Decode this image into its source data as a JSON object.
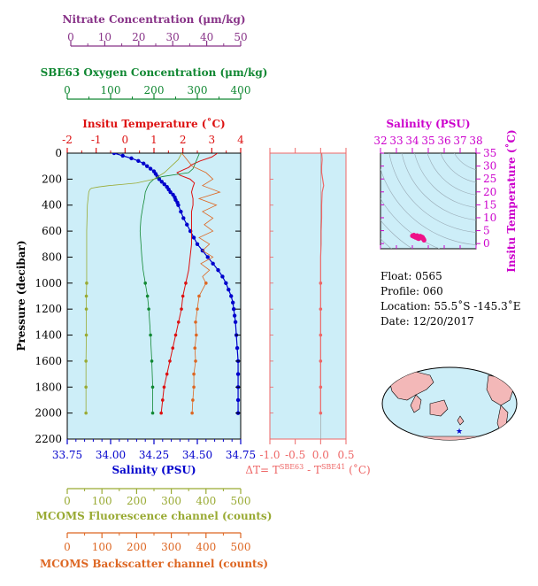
{
  "colors": {
    "panel_bg": "#cdeef8",
    "nitrate": "#883388",
    "oxygen": "#118833",
    "temperature": "#dd1111",
    "salinity": "#0000cc",
    "fluorescence": "#99aa33",
    "backscatter": "#dd6622",
    "delta_t": "#ee6666",
    "ts_axis": "#cc00cc"
  },
  "main_panel": {
    "ylabel": "Pressure (decibar)",
    "y_ticks": [
      "0",
      "200",
      "400",
      "600",
      "800",
      "1000",
      "1200",
      "1400",
      "1600",
      "1800",
      "2000",
      "2200"
    ],
    "axes": {
      "nitrate": {
        "label": "Nitrate Concentration (μm/kg)",
        "ticks": [
          "0",
          "10",
          "20",
          "30",
          "40",
          "50"
        ]
      },
      "oxygen": {
        "label": "SBE63 Oxygen Concentration (μm/kg)",
        "ticks": [
          "0",
          "100",
          "200",
          "300",
          "400"
        ]
      },
      "temperature": {
        "label": "Insitu Temperature (˚C)",
        "ticks": [
          "-2",
          "-1",
          "0",
          "1",
          "2",
          "3",
          "4"
        ]
      },
      "salinity": {
        "label": "Salinity (PSU)",
        "ticks": [
          "33.75",
          "34.00",
          "34.25",
          "34.50",
          "34.75"
        ]
      },
      "fluorescence": {
        "label": "MCOMS Fluorescence channel (counts)",
        "ticks": [
          "0",
          "100",
          "200",
          "300",
          "400",
          "500"
        ]
      },
      "backscatter": {
        "label": "MCOMS Backscatter channel (counts)",
        "ticks": [
          "0",
          "100",
          "200",
          "300",
          "400",
          "500"
        ]
      }
    }
  },
  "delta_panel": {
    "ticks": [
      "-1.0",
      "-0.5",
      "0.0",
      "0.5"
    ],
    "label_prefix": "ΔT= T",
    "label_sup1": "SBE63",
    "label_mid": " - T",
    "label_sup2": "SBE41",
    "label_suffix": " (˚C)"
  },
  "ts_panel": {
    "xlabel": "Salinity (PSU)",
    "ylabel": "Insitu Temperature (˚C)",
    "x_ticks": [
      "32",
      "33",
      "34",
      "35",
      "36",
      "37",
      "38"
    ],
    "y_ticks": [
      "0",
      "5",
      "10",
      "15",
      "20",
      "25",
      "30",
      "35"
    ]
  },
  "info": {
    "float": "Float:  0565",
    "profile": "Profile:  060",
    "location": "Location:  55.5˚S  -145.3˚E",
    "date": "Date:  12/20/2017"
  },
  "chart_data": [
    {
      "type": "line",
      "title": "",
      "ylabel": "Pressure (decibar)",
      "ylim": [
        2200,
        0
      ],
      "series": [
        {
          "name": "Salinity (PSU)",
          "xlim": [
            33.75,
            34.75
          ],
          "pressure": [
            0,
            20,
            40,
            60,
            80,
            100,
            120,
            140,
            160,
            180,
            200,
            220,
            240,
            260,
            280,
            300,
            320,
            340,
            360,
            380,
            400,
            450,
            500,
            550,
            600,
            650,
            700,
            750,
            800,
            850,
            900,
            950,
            1000,
            1050,
            1100,
            1150,
            1200,
            1250,
            1300,
            1400,
            1500,
            1600,
            1700,
            1800,
            1900,
            2000
          ],
          "values": [
            34.02,
            34.07,
            34.12,
            34.16,
            34.19,
            34.21,
            34.23,
            34.25,
            34.26,
            34.27,
            34.28,
            34.295,
            34.31,
            34.325,
            34.335,
            34.345,
            34.36,
            34.37,
            34.375,
            34.385,
            34.39,
            34.405,
            34.42,
            34.44,
            34.46,
            34.48,
            34.5,
            34.53,
            34.56,
            34.59,
            34.62,
            34.645,
            34.665,
            34.68,
            34.695,
            34.705,
            34.71,
            34.715,
            34.72,
            34.725,
            34.73,
            34.735,
            34.735,
            34.735,
            34.735,
            34.735
          ]
        },
        {
          "name": "Insitu Temperature (˚C)",
          "xlim": [
            -2,
            4
          ],
          "pressure": [
            0,
            30,
            60,
            90,
            110,
            130,
            150,
            170,
            200,
            230,
            260,
            300,
            350,
            400,
            450,
            500,
            550,
            600,
            700,
            800,
            900,
            1000,
            1100,
            1200,
            1300,
            1400,
            1500,
            1600,
            1700,
            1800,
            1900,
            2000
          ],
          "values": [
            3.2,
            3.0,
            2.6,
            2.3,
            2.2,
            2.0,
            1.8,
            1.9,
            2.25,
            2.4,
            2.35,
            2.3,
            2.35,
            2.35,
            2.3,
            2.3,
            2.3,
            2.3,
            2.3,
            2.25,
            2.2,
            2.1,
            2.0,
            1.95,
            1.85,
            1.75,
            1.65,
            1.55,
            1.45,
            1.35,
            1.3,
            1.25
          ]
        },
        {
          "name": "SBE63 Oxygen Concentration (μm/kg)",
          "xlim": [
            0,
            400
          ],
          "pressure": [
            0,
            40,
            80,
            120,
            150,
            160,
            180,
            200,
            230,
            260,
            300,
            350,
            400,
            500,
            600,
            700,
            800,
            900,
            1000,
            1100,
            1200,
            1400,
            1600,
            1800,
            2000
          ],
          "values": [
            305,
            300,
            295,
            290,
            280,
            260,
            220,
            200,
            190,
            185,
            180,
            178,
            175,
            170,
            168,
            170,
            172,
            175,
            180,
            185,
            188,
            192,
            195,
            197,
            197
          ]
        },
        {
          "name": "MCOMS Fluorescence channel (counts)",
          "xlim": [
            0,
            500
          ],
          "pressure": [
            0,
            50,
            100,
            150,
            200,
            230,
            240,
            250,
            260,
            270,
            280,
            300,
            350,
            400,
            500,
            600,
            700,
            800,
            900,
            1000,
            1100,
            1200,
            1400,
            1600,
            1800,
            2000
          ],
          "values": [
            330,
            320,
            300,
            280,
            250,
            200,
            160,
            120,
            90,
            70,
            65,
            62,
            60,
            58,
            57,
            56,
            56,
            56,
            56,
            56,
            55,
            55,
            55,
            54,
            54,
            54
          ]
        },
        {
          "name": "MCOMS Backscatter channel (counts)",
          "xlim": [
            0,
            500
          ],
          "pressure": [
            0,
            100,
            150,
            200,
            250,
            300,
            350,
            400,
            450,
            500,
            550,
            600,
            650,
            700,
            750,
            800,
            850,
            900,
            950,
            1000,
            1100,
            1200,
            1300,
            1400,
            1500,
            1600,
            1700,
            1800,
            1900,
            2000
          ],
          "values": [
            330,
            360,
            400,
            420,
            390,
            440,
            380,
            430,
            390,
            420,
            395,
            420,
            380,
            410,
            390,
            420,
            385,
            410,
            390,
            400,
            380,
            375,
            370,
            372,
            368,
            370,
            365,
            365,
            362,
            360
          ]
        }
      ]
    },
    {
      "type": "line",
      "title": "",
      "xlim": [
        -1.0,
        0.5
      ],
      "ylim": [
        2200,
        0
      ],
      "series": [
        {
          "name": "ΔT",
          "pressure": [
            0,
            50,
            100,
            150,
            200,
            250,
            300,
            400,
            500,
            600,
            700,
            800,
            900,
            1000,
            1200,
            1400,
            1600,
            1800,
            2000
          ],
          "values": [
            0.02,
            0.03,
            0.02,
            0.02,
            0.04,
            0.06,
            0.03,
            0.02,
            0.02,
            0.01,
            0.01,
            0.0,
            0.0,
            0.0,
            0.0,
            0.0,
            0.0,
            0.0,
            0.0
          ]
        }
      ]
    },
    {
      "type": "scatter",
      "title": "",
      "xlabel": "Salinity (PSU)",
      "ylabel": "Insitu Temperature (˚C)",
      "xlim": [
        32,
        38
      ],
      "ylim": [
        -2,
        35
      ],
      "points": [
        [
          34.0,
          3.0
        ],
        [
          34.1,
          2.7
        ],
        [
          34.2,
          2.4
        ],
        [
          34.3,
          2.2
        ],
        [
          34.35,
          2.0
        ],
        [
          34.4,
          1.9
        ],
        [
          34.45,
          2.3
        ],
        [
          34.5,
          2.4
        ],
        [
          34.55,
          2.3
        ],
        [
          34.6,
          2.1
        ],
        [
          34.65,
          2.0
        ],
        [
          34.7,
          1.8
        ],
        [
          34.72,
          1.6
        ],
        [
          34.73,
          1.4
        ],
        [
          34.735,
          1.3
        ],
        [
          34.1,
          3.3
        ],
        [
          34.3,
          3.1
        ],
        [
          34.5,
          2.9
        ],
        [
          34.6,
          2.6
        ],
        [
          34.65,
          2.4
        ]
      ]
    }
  ]
}
